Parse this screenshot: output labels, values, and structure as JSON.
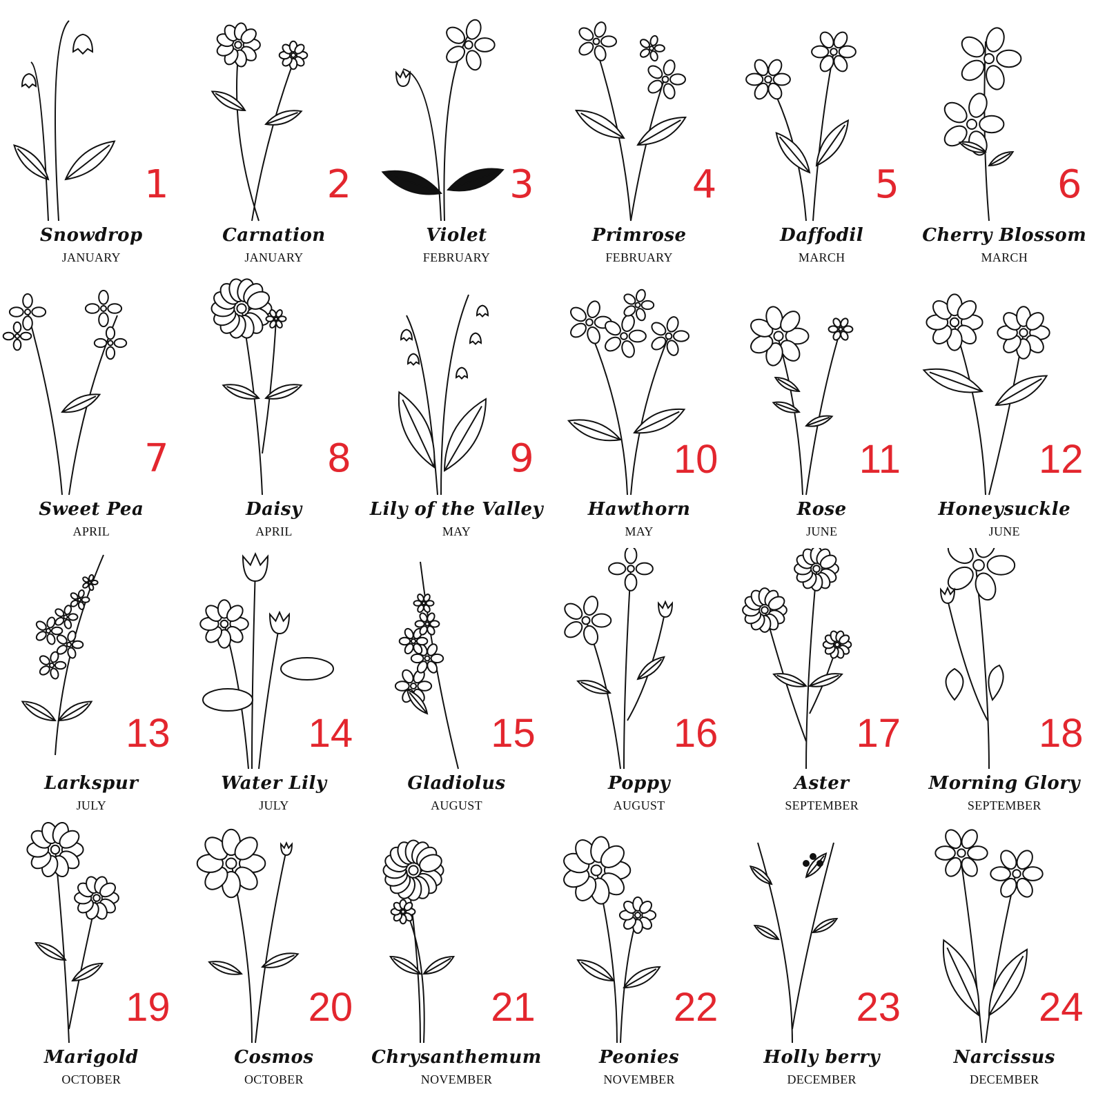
{
  "number_color": "#e3262e",
  "ink_color": "#111111",
  "flowers": [
    {
      "number": "1",
      "name": "Snowdrop",
      "month": "JANUARY",
      "icon": "snowdrop-icon"
    },
    {
      "number": "2",
      "name": "Carnation",
      "month": "JANUARY",
      "icon": "carnation-icon"
    },
    {
      "number": "3",
      "name": "Violet",
      "month": "FEBRUARY",
      "icon": "violet-icon"
    },
    {
      "number": "4",
      "name": "Primrose",
      "month": "FEBRUARY",
      "icon": "primrose-icon"
    },
    {
      "number": "5",
      "name": "Daffodil",
      "month": "MARCH",
      "icon": "daffodil-icon"
    },
    {
      "number": "6",
      "name": "Cherry Blossom",
      "month": "MARCH",
      "icon": "cherry-blossom-icon"
    },
    {
      "number": "7",
      "name": "Sweet Pea",
      "month": "APRIL",
      "icon": "sweet-pea-icon"
    },
    {
      "number": "8",
      "name": "Daisy",
      "month": "APRIL",
      "icon": "daisy-icon"
    },
    {
      "number": "9",
      "name": "Lily of the Valley",
      "month": "MAY",
      "icon": "lily-of-the-valley-icon"
    },
    {
      "number": "10",
      "name": "Hawthorn",
      "month": "MAY",
      "icon": "hawthorn-icon"
    },
    {
      "number": "11",
      "name": "Rose",
      "month": "JUNE",
      "icon": "rose-icon"
    },
    {
      "number": "12",
      "name": "Honeysuckle",
      "month": "JUNE",
      "icon": "honeysuckle-icon"
    },
    {
      "number": "13",
      "name": "Larkspur",
      "month": "JULY",
      "icon": "larkspur-icon"
    },
    {
      "number": "14",
      "name": "Water Lily",
      "month": "JULY",
      "icon": "water-lily-icon"
    },
    {
      "number": "15",
      "name": "Gladiolus",
      "month": "AUGUST",
      "icon": "gladiolus-icon"
    },
    {
      "number": "16",
      "name": "Poppy",
      "month": "AUGUST",
      "icon": "poppy-icon"
    },
    {
      "number": "17",
      "name": "Aster",
      "month": "SEPTEMBER",
      "icon": "aster-icon"
    },
    {
      "number": "18",
      "name": "Morning Glory",
      "month": "SEPTEMBER",
      "icon": "morning-glory-icon"
    },
    {
      "number": "19",
      "name": "Marigold",
      "month": "OCTOBER",
      "icon": "marigold-icon"
    },
    {
      "number": "20",
      "name": "Cosmos",
      "month": "OCTOBER",
      "icon": "cosmos-icon"
    },
    {
      "number": "21",
      "name": "Chrysanthemum",
      "month": "NOVEMBER",
      "icon": "chrysanthemum-icon"
    },
    {
      "number": "22",
      "name": "Peonies",
      "month": "NOVEMBER",
      "icon": "peonies-icon"
    },
    {
      "number": "23",
      "name": "Holly berry",
      "month": "DECEMBER",
      "icon": "holly-berry-icon"
    },
    {
      "number": "24",
      "name": "Narcissus",
      "month": "DECEMBER",
      "icon": "narcissus-icon"
    }
  ]
}
